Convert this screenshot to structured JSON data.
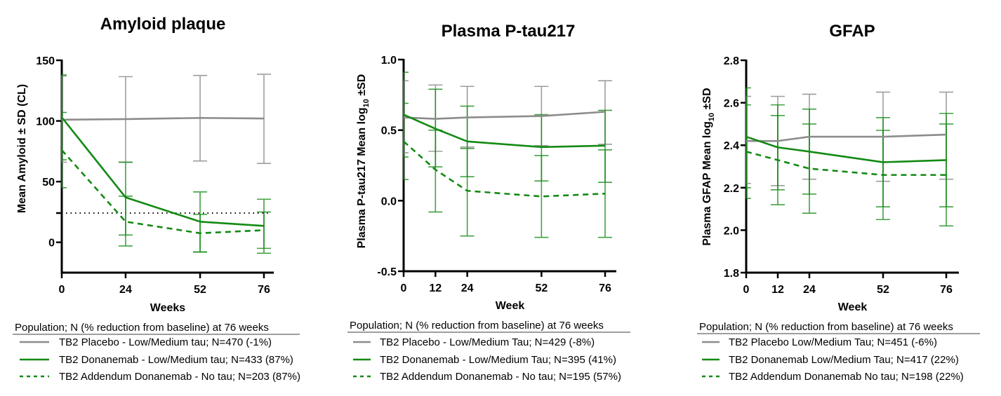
{
  "colors": {
    "placebo": "#8c8c8c",
    "donanemab": "#138a13",
    "addendum": "#138a13",
    "reference": "#000000"
  },
  "chart_data": [
    {
      "type": "line",
      "title": "Amyloid plaque",
      "xlabel": "Weeks",
      "ylabel": "Mean Amyloid ± SD (CL)",
      "xlim": [
        0,
        76
      ],
      "ylim": [
        -25,
        150
      ],
      "x_ticks": [
        0,
        24,
        52,
        76
      ],
      "y_ticks": [
        0,
        50,
        100,
        150
      ],
      "reference_line": {
        "y": 24.1,
        "style": "dotted"
      },
      "legend_title": "Population; N (% reduction from baseline) at 76 weeks",
      "series": [
        {
          "name": "TB2 Placebo - Low/Medium tau; N=470 (-1%)",
          "key": "placebo",
          "style": "solid",
          "x": [
            0,
            24,
            52,
            76
          ],
          "mean": [
            101,
            101.5,
            102.5,
            102
          ],
          "upper": [
            137,
            136.5,
            137.5,
            138.5
          ],
          "lower": [
            66,
            66,
            67,
            65
          ]
        },
        {
          "name": "TB2 Donanemab - Low/Medium tau; N=433 (87%)",
          "key": "donanemab",
          "style": "solid",
          "x": [
            0,
            24,
            52,
            76
          ],
          "mean": [
            103,
            37,
            17,
            13.5
          ],
          "upper": [
            138,
            66,
            41.5,
            35.5
          ],
          "lower": [
            68,
            6,
            -8,
            -9
          ]
        },
        {
          "name": "TB2 Addendum Donanemab - No tau; N=203 (87%)",
          "key": "addendum",
          "style": "dashed",
          "x": [
            0,
            24,
            52,
            76
          ],
          "mean": [
            76,
            17,
            7.5,
            10
          ],
          "upper": [
            107,
            38,
            23,
            25
          ],
          "lower": [
            45,
            -3,
            -8,
            -5
          ]
        }
      ]
    },
    {
      "type": "line",
      "title": "Plasma P-tau217",
      "xlabel": "Week",
      "ylabel": "Plasma P-tau217 Mean log10 ±SD",
      "ylabel_main": "Plasma P-tau217 Mean log",
      "ylabel_sub": "10",
      "ylabel_tail": " ±SD",
      "xlim": [
        0,
        76
      ],
      "ylim": [
        -0.5,
        1.0
      ],
      "x_ticks": [
        0,
        12,
        24,
        52,
        76
      ],
      "y_ticks": [
        -0.5,
        0.0,
        0.5,
        1.0
      ],
      "y_tick_labels": [
        "-0.5",
        "0.0",
        "0.5",
        "1.0"
      ],
      "legend_title": "Population; N (% reduction from baseline) at 76 weeks",
      "series": [
        {
          "name": "TB2 Placebo - Low/Medium Tau; N=429 (-8%)",
          "key": "placebo",
          "style": "solid",
          "x": [
            0,
            12,
            24,
            52,
            76
          ],
          "mean": [
            0.59,
            0.58,
            0.59,
            0.6,
            0.63
          ],
          "upper": [
            0.85,
            0.82,
            0.81,
            0.81,
            0.85
          ],
          "lower": [
            0.34,
            0.35,
            0.38,
            0.39,
            0.4
          ]
        },
        {
          "name": "TB2 Donanemab - Low/Medium Tau; N=395 (41%)",
          "key": "donanemab",
          "style": "solid",
          "x": [
            0,
            12,
            24,
            52,
            76
          ],
          "mean": [
            0.61,
            0.51,
            0.42,
            0.38,
            0.39
          ],
          "upper": [
            0.91,
            0.79,
            0.67,
            0.61,
            0.64
          ],
          "lower": [
            0.31,
            0.24,
            0.17,
            0.14,
            0.13
          ]
        },
        {
          "name": "TB2 Addendum Donanemab - No tau; N=195 (57%)",
          "key": "addendum",
          "style": "dashed",
          "x": [
            0,
            12,
            24,
            52,
            76
          ],
          "mean": [
            0.42,
            0.22,
            0.07,
            0.03,
            0.05
          ],
          "upper": [
            0.69,
            0.5,
            0.37,
            0.32,
            0.36
          ],
          "lower": [
            0.15,
            -0.08,
            -0.25,
            -0.26,
            -0.26
          ]
        }
      ]
    },
    {
      "type": "line",
      "title": "GFAP",
      "xlabel": "Week",
      "ylabel": "Plasma GFAP Mean log10 ±SD",
      "ylabel_main": "Plasma GFAP Mean log",
      "ylabel_sub": "10",
      "ylabel_tail": " ±SD",
      "xlim": [
        0,
        76
      ],
      "ylim": [
        1.8,
        2.8
      ],
      "x_ticks": [
        0,
        12,
        24,
        52,
        76
      ],
      "y_ticks": [
        1.8,
        2.0,
        2.2,
        2.4,
        2.6,
        2.8
      ],
      "y_tick_labels": [
        "1.8",
        "2.0",
        "2.2",
        "2.4",
        "2.6",
        "2.8"
      ],
      "legend_title": "Population; N (% reduction from baseline) at 76 weeks",
      "series": [
        {
          "name": "TB2 Placebo Low/Medium Tau; N=451 (-6%)",
          "key": "placebo",
          "style": "solid",
          "x": [
            0,
            12,
            24,
            52,
            76
          ],
          "mean": [
            2.42,
            2.42,
            2.44,
            2.44,
            2.45
          ],
          "upper": [
            2.63,
            2.63,
            2.64,
            2.65,
            2.65
          ],
          "lower": [
            2.22,
            2.21,
            2.24,
            2.23,
            2.24
          ]
        },
        {
          "name": "TB2 Donanemab Low/Medium Tau; N=417 (22%)",
          "key": "donanemab",
          "style": "solid",
          "x": [
            0,
            12,
            24,
            52,
            76
          ],
          "mean": [
            2.44,
            2.39,
            2.37,
            2.32,
            2.33
          ],
          "upper": [
            2.67,
            2.59,
            2.57,
            2.53,
            2.55
          ],
          "lower": [
            2.2,
            2.19,
            2.17,
            2.05,
            2.02
          ]
        },
        {
          "name": "TB2 Addendum Donanemab No tau; N=198 (22%)",
          "key": "addendum",
          "style": "dashed",
          "x": [
            0,
            12,
            24,
            52,
            76
          ],
          "mean": [
            2.37,
            2.33,
            2.29,
            2.26,
            2.26
          ],
          "upper": [
            2.59,
            2.54,
            2.5,
            2.47,
            2.5
          ],
          "lower": [
            2.15,
            2.12,
            2.08,
            2.11,
            2.11
          ]
        }
      ]
    }
  ]
}
